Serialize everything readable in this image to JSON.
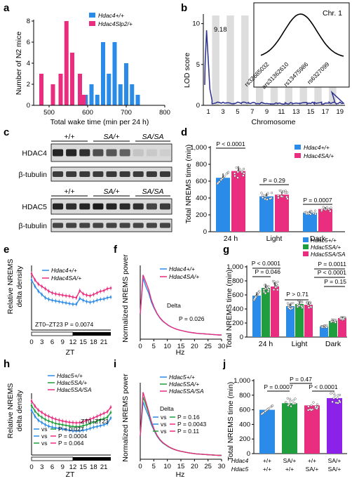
{
  "colors": {
    "blue": "#2a8be8",
    "pink": "#ea2e7f",
    "green": "#1e9e3c",
    "purple": "#8c22ea",
    "teal": "#1aa39a",
    "navy": "#2b2f8e",
    "gray": "#dddddd"
  },
  "panels": {
    "a": {
      "label": "a",
      "legend": [
        "Hdac4+/+",
        "Hdac4Slp2/+"
      ],
      "ylabel": "Number of N2 mice",
      "xlabel": "Total wake time (min per 24 h)",
      "xticks": [
        "500",
        "600",
        "700",
        "800"
      ],
      "yticks": [
        "0",
        "2",
        "4",
        "6",
        "8"
      ]
    },
    "b": {
      "label": "b",
      "peak": "9.18",
      "ylabel": "LOD score",
      "xlabel": "Chromosome",
      "xticks": [
        "1",
        "3",
        "5",
        "7",
        "9",
        "11",
        "13",
        "15",
        "17",
        "19"
      ],
      "yticks": [
        "0",
        "5",
        "10"
      ],
      "inset_title": "Chr. 1",
      "inset_markers": [
        "rs32685032",
        "ars31362610",
        "rs13475986",
        "rs6327099"
      ]
    },
    "c": {
      "label": "c",
      "groups_top": [
        "+/+",
        "SA/+",
        "SA/SA"
      ],
      "groups_bottom": [
        "+/+",
        "SA/+",
        "SA/SA"
      ],
      "bands": [
        "HDAC4",
        "β-tubulin",
        "HDAC5",
        "β-tubulin"
      ]
    },
    "d": {
      "label": "d",
      "ylabel": "Total NREMS time (min)",
      "legend": [
        "Hdac4+/+",
        "Hdac4SA/+"
      ],
      "categories": [
        "24 h",
        "Light",
        "Dark"
      ],
      "yticks": [
        "0",
        "200",
        "400",
        "600",
        "800",
        "1,000"
      ],
      "pvalues": [
        "P < 0.0001",
        "P = 0.29",
        "P = 0.0007"
      ]
    },
    "e": {
      "label": "e",
      "ylabel": [
        "Relative NREMS",
        "delta density"
      ],
      "xlabel": "ZT",
      "legend": [
        "Hdac4+/+",
        "Hdac4SA/+"
      ],
      "annotation": "ZT0–ZT23  P = 0.0074",
      "xticks": [
        "0",
        "3",
        "6",
        "9",
        "12",
        "15",
        "18",
        "21"
      ]
    },
    "f": {
      "label": "f",
      "ylabel": "Normalized NREMS power",
      "xlabel": "Hz",
      "legend": [
        "Hdac4+/+",
        "Hdac4SA/+"
      ],
      "band": "Delta",
      "pvalue": "P = 0.026",
      "xticks": [
        "0",
        "5",
        "10",
        "15",
        "20",
        "25",
        "30"
      ]
    },
    "g": {
      "label": "g",
      "ylabel": "Total NREMS time (min)",
      "legend": [
        "Hdac5+/+",
        "Hdac5SA/+",
        "Hdac5SA/SA"
      ],
      "categories": [
        "24 h",
        "Light",
        "Dark"
      ],
      "yticks": [
        "0",
        "200",
        "400",
        "600",
        "800",
        "1,000"
      ],
      "pvalues": [
        "P < 0.0001",
        "P = 0.046",
        "P > 0.71",
        "P = 0.0011",
        "P < 0.0001",
        "P = 0.15"
      ]
    },
    "h": {
      "label": "h",
      "ylabel": [
        "Relative NREMS",
        "delta density"
      ],
      "xlabel": "ZT",
      "legend": [
        "Hdac5+/+",
        "Hdac5SA/+",
        "Hdac5SA/SA"
      ],
      "annotation": "ZT0–ZT23",
      "vs": [
        "vs",
        "vs",
        "vs"
      ],
      "pvalues": [
        "P = 0.027",
        "P = 0.0004",
        "P = 0.064"
      ],
      "xticks": [
        "0",
        "3",
        "6",
        "9",
        "12",
        "15",
        "18",
        "21"
      ]
    },
    "i": {
      "label": "i",
      "ylabel": "Normalized NREMS power",
      "xlabel": "Hz",
      "legend": [
        "Hdac5+/+",
        "Hdac5SA/+",
        "Hdac5SA/SA"
      ],
      "band": "Delta",
      "vs": [
        "vs",
        "vs",
        "vs"
      ],
      "pvalues": [
        "P = 0.16",
        "P = 0.0043",
        "P = 0.11"
      ],
      "xticks": [
        "0",
        "5",
        "10",
        "15",
        "20",
        "25",
        "30"
      ]
    },
    "j": {
      "label": "j",
      "ylabel": "Total NREMS time (min)",
      "yticks": [
        "0",
        "200",
        "400",
        "600",
        "800",
        "1,000"
      ],
      "pvalues": [
        "P = 0.47",
        "P = 0.0007",
        "P < 0.0001"
      ],
      "row_labels": [
        "Hdac4",
        "Hdac5"
      ],
      "hdac4": [
        "+/+",
        "SA/+",
        "+/+",
        "SA/+"
      ],
      "hdac5": [
        "+/+",
        "+/+",
        "SA/+",
        "SA/+"
      ]
    }
  },
  "chart_data": [
    {
      "panel": "a",
      "type": "bar",
      "xlabel": "Total wake time (min per 24 h)",
      "ylabel": "Number of N2 mice",
      "xlim": [
        460,
        800
      ],
      "ylim": [
        0,
        8
      ],
      "series": [
        {
          "name": "Hdac4+/+",
          "x": [
            580,
            595,
            610,
            625,
            640,
            655,
            670,
            685,
            700,
            715,
            730
          ],
          "values": [
            3,
            1,
            2,
            1,
            6,
            3,
            6,
            2,
            4,
            2,
            1
          ]
        },
        {
          "name": "Hdac4Slp2/+",
          "x": [
            480,
            510,
            530,
            545,
            560,
            580,
            590
          ],
          "values": [
            3,
            2,
            3,
            8,
            5,
            3,
            1
          ]
        }
      ]
    },
    {
      "panel": "b",
      "type": "line",
      "xlabel": "Chromosome",
      "ylabel": "LOD score",
      "peak": {
        "chromosome": 1,
        "lod": 9.18
      }
    },
    {
      "panel": "d",
      "type": "bar",
      "categories": [
        "24 h",
        "Light",
        "Dark"
      ],
      "ylim": [
        0,
        1000
      ],
      "series": [
        {
          "name": "Hdac4+/+",
          "values": [
            640,
            420,
            225
          ]
        },
        {
          "name": "Hdac4SA/+",
          "values": [
            720,
            440,
            270
          ]
        }
      ]
    },
    {
      "panel": "e",
      "type": "line",
      "xlabel": "ZT",
      "xlim": [
        0,
        23
      ],
      "series": [
        {
          "name": "Hdac4+/+",
          "values": [
            1.55,
            1.35,
            1.2,
            1.1,
            1.0,
            0.95,
            0.92,
            0.9,
            0.88,
            0.86,
            0.84,
            0.82,
            0.8,
            0.8,
            0.98,
            0.92,
            0.88,
            0.86,
            0.88,
            0.92,
            0.95,
            0.96,
            1.0,
            1.02
          ]
        },
        {
          "name": "Hdac4SA/+",
          "values": [
            1.75,
            1.55,
            1.42,
            1.35,
            1.28,
            1.2,
            1.15,
            1.12,
            1.1,
            1.08,
            1.06,
            1.05,
            1.02,
            1.0,
            1.22,
            1.12,
            1.08,
            1.06,
            1.1,
            1.15,
            1.2,
            1.22,
            1.28,
            1.3
          ]
        }
      ]
    },
    {
      "panel": "f",
      "type": "line",
      "xlabel": "Hz",
      "xlim": [
        0,
        30
      ],
      "series": [
        {
          "name": "Hdac4+/+",
          "values": [
            1.2,
            2.9,
            2.5,
            2.2,
            1.75,
            1.45,
            1.2,
            1.0,
            0.85,
            0.75,
            0.65,
            0.58,
            0.52,
            0.47,
            0.43,
            0.4,
            0.37,
            0.34,
            0.32,
            0.3,
            0.28,
            0.27,
            0.26,
            0.25,
            0.24,
            0.23,
            0.22,
            0.21,
            0.2,
            0.2
          ]
        },
        {
          "name": "Hdac4SA/+",
          "values": [
            1.2,
            3.05,
            2.7,
            2.35,
            1.85,
            1.5,
            1.22,
            1.02,
            0.87,
            0.76,
            0.66,
            0.58,
            0.52,
            0.47,
            0.43,
            0.4,
            0.37,
            0.34,
            0.32,
            0.3,
            0.28,
            0.27,
            0.26,
            0.25,
            0.24,
            0.23,
            0.22,
            0.21,
            0.2,
            0.2
          ]
        }
      ]
    },
    {
      "panel": "g",
      "type": "bar",
      "categories": [
        "24 h",
        "Light",
        "Dark"
      ],
      "ylim": [
        0,
        1000
      ],
      "series": [
        {
          "name": "Hdac5+/+",
          "values": [
            590,
            440,
            150
          ]
        },
        {
          "name": "Hdac5SA/+",
          "values": [
            700,
            470,
            230
          ]
        },
        {
          "name": "Hdac5SA/SA",
          "values": [
            720,
            460,
            270
          ]
        }
      ]
    },
    {
      "panel": "h",
      "type": "line",
      "xlabel": "ZT",
      "xlim": [
        0,
        23
      ],
      "series": [
        {
          "name": "Hdac5+/+",
          "values": [
            1.45,
            1.25,
            1.12,
            1.05,
            0.98,
            0.93,
            0.9,
            0.88,
            0.86,
            0.84,
            0.82,
            0.8,
            0.78,
            0.78,
            0.78,
            0.8,
            0.82,
            0.86,
            0.9,
            0.92,
            0.95,
            0.98,
            1.02,
            1.2
          ]
        },
        {
          "name": "Hdac5SA/+",
          "values": [
            1.6,
            1.42,
            1.3,
            1.22,
            1.15,
            1.1,
            1.06,
            1.02,
            1.0,
            0.98,
            0.96,
            0.94,
            0.92,
            0.92,
            0.92,
            0.95,
            0.98,
            1.02,
            1.06,
            1.1,
            1.14,
            1.18,
            1.22,
            1.38
          ]
        },
        {
          "name": "Hdac5SA/SA",
          "values": [
            1.75,
            1.58,
            1.45,
            1.38,
            1.3,
            1.25,
            1.2,
            1.16,
            1.13,
            1.1,
            1.08,
            1.06,
            1.05,
            1.04,
            1.05,
            1.08,
            1.12,
            1.16,
            1.2,
            1.25,
            1.3,
            1.35,
            1.4,
            1.55
          ]
        }
      ]
    },
    {
      "panel": "i",
      "type": "line",
      "xlabel": "Hz",
      "xlim": [
        0,
        30
      ],
      "series": [
        {
          "name": "Hdac5+/+",
          "values": [
            1.2,
            3.0,
            2.6,
            2.25,
            1.8,
            1.48,
            1.2,
            1.0,
            0.85,
            0.75,
            0.65,
            0.58,
            0.52,
            0.47,
            0.43,
            0.4,
            0.37,
            0.34,
            0.32,
            0.3,
            0.28,
            0.27,
            0.26,
            0.25,
            0.24,
            0.23,
            0.22,
            0.21,
            0.2,
            0.2
          ]
        },
        {
          "name": "Hdac5SA/+",
          "values": [
            1.2,
            3.25,
            2.85,
            2.4,
            1.9,
            1.52,
            1.23,
            1.02,
            0.87,
            0.76,
            0.66,
            0.58,
            0.52,
            0.47,
            0.43,
            0.4,
            0.37,
            0.34,
            0.32,
            0.3,
            0.28,
            0.27,
            0.26,
            0.25,
            0.24,
            0.23,
            0.22,
            0.21,
            0.2,
            0.2
          ]
        },
        {
          "name": "Hdac5SA/SA",
          "values": [
            1.2,
            3.5,
            3.0,
            2.5,
            1.95,
            1.55,
            1.25,
            1.03,
            0.88,
            0.77,
            0.67,
            0.59,
            0.52,
            0.47,
            0.43,
            0.4,
            0.37,
            0.34,
            0.32,
            0.3,
            0.28,
            0.27,
            0.26,
            0.25,
            0.24,
            0.23,
            0.22,
            0.21,
            0.2,
            0.2
          ]
        }
      ]
    },
    {
      "panel": "j",
      "type": "bar",
      "categories": [
        "Hdac4 +/+ Hdac5 +/+",
        "Hdac4 SA/+ Hdac5 +/+",
        "Hdac4 +/+ Hdac5 SA/+",
        "Hdac4 SA/+ Hdac5 SA/+"
      ],
      "ylim": [
        0,
        1000
      ],
      "values": [
        600,
        690,
        660,
        760
      ]
    }
  ]
}
